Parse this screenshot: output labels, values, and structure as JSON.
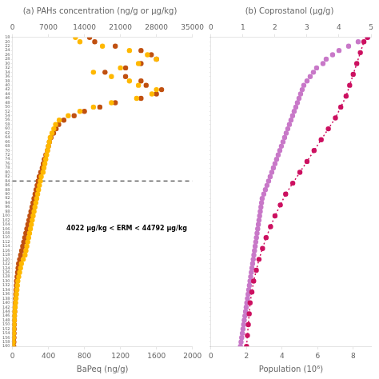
{
  "chart_data": [
    {
      "type": "scatter",
      "title": "(a) PAHs concentration (ng/g or μg/kg)",
      "xlabel": "BaPeq (ng/g)",
      "xlim": [
        0,
        2000
      ],
      "xticks": [
        0,
        400,
        800,
        1200,
        1600,
        2000
      ],
      "x2lim": [
        0,
        35000
      ],
      "x2ticks": [
        0,
        7000,
        14000,
        21000,
        28000,
        35000
      ],
      "ylim": [
        160,
        18
      ],
      "yticks": [
        18,
        20,
        22,
        24,
        26,
        28,
        30,
        32,
        34,
        36,
        38,
        40,
        42,
        44,
        46,
        48,
        50,
        52,
        54,
        56,
        58,
        60,
        62,
        64,
        66,
        68,
        70,
        72,
        74,
        76,
        78,
        80,
        82,
        84,
        86,
        88,
        90,
        92,
        94,
        96,
        98,
        100,
        102,
        104,
        106,
        108,
        110,
        112,
        114,
        116,
        118,
        120,
        122,
        124,
        126,
        128,
        130,
        132,
        134,
        136,
        138,
        140,
        142,
        144,
        146,
        148,
        150,
        152,
        154,
        156,
        158,
        160
      ],
      "grid": false,
      "series": [
        {
          "color": "#c05010",
          "axis": "x2",
          "marker": "circle",
          "x": [
            15000,
            16000,
            20000,
            25000,
            27000,
            28000,
            25000,
            22000,
            18000,
            22000,
            25000,
            26000,
            29000,
            28000,
            25000,
            20000,
            17000,
            14000,
            12000,
            10000,
            9000,
            8500,
            8000,
            7500,
            7200,
            7000,
            6800,
            6500,
            6200,
            6000,
            5800,
            5500,
            5200,
            5000,
            4800,
            4600,
            4400,
            4200,
            4000,
            3800,
            3600,
            3400,
            3200,
            3000,
            2800,
            2600,
            2400,
            2200,
            2000,
            1800,
            1600,
            1400,
            1200,
            1100,
            1000,
            900,
            800,
            750,
            700,
            650,
            600,
            550,
            500,
            450,
            400,
            380,
            360,
            340,
            320,
            300,
            280,
            260
          ],
          "y": [
            18,
            20,
            22,
            24,
            26,
            28,
            30,
            32,
            34,
            36,
            38,
            40,
            42,
            44,
            46,
            48,
            50,
            52,
            54,
            56,
            58,
            60,
            62,
            64,
            66,
            68,
            70,
            72,
            74,
            76,
            78,
            80,
            82,
            84,
            86,
            88,
            90,
            92,
            94,
            96,
            98,
            100,
            102,
            104,
            106,
            108,
            110,
            112,
            114,
            116,
            118,
            120,
            122,
            124,
            126,
            128,
            130,
            132,
            134,
            136,
            138,
            140,
            142,
            144,
            146,
            148,
            150,
            152,
            154,
            156,
            158,
            160
          ]
        },
        {
          "color": "#FFB800",
          "marker": "circle",
          "x": [
            700,
            750,
            1000,
            1300,
            1500,
            1600,
            1400,
            1200,
            900,
            1100,
            1300,
            1400,
            1600,
            1550,
            1380,
            1100,
            900,
            750,
            620,
            520,
            480,
            460,
            440,
            420,
            410,
            400,
            390,
            380,
            370,
            360,
            350,
            340,
            320,
            310,
            300,
            290,
            280,
            270,
            260,
            250,
            240,
            230,
            220,
            210,
            200,
            190,
            180,
            170,
            160,
            150,
            140,
            120,
            100,
            90,
            80,
            70,
            60,
            55,
            50,
            45,
            40,
            35,
            30,
            25,
            22,
            20,
            18,
            15,
            13,
            11,
            9,
            7
          ],
          "y": [
            18,
            20,
            22,
            24,
            26,
            28,
            30,
            32,
            34,
            36,
            38,
            40,
            42,
            44,
            46,
            48,
            50,
            52,
            54,
            56,
            58,
            60,
            62,
            64,
            66,
            68,
            70,
            72,
            74,
            76,
            78,
            80,
            82,
            84,
            86,
            88,
            90,
            92,
            94,
            96,
            98,
            100,
            102,
            104,
            106,
            108,
            110,
            112,
            114,
            116,
            118,
            120,
            122,
            124,
            126,
            128,
            130,
            132,
            134,
            136,
            138,
            140,
            142,
            144,
            146,
            148,
            150,
            152,
            154,
            156,
            158,
            160
          ]
        }
      ],
      "reference_lines": [
        {
          "y": 84,
          "line_style": "dashed",
          "color": "#444444"
        }
      ],
      "annotations": [
        "4022 μg/kg < ERM < 44792 μg/kg"
      ]
    },
    {
      "type": "scatter",
      "title": "(b) Coprostanol (μg/g)",
      "xlabel": "Population (10⁶)",
      "xlim": [
        0,
        9
      ],
      "xticks": [
        0,
        2,
        4,
        6,
        8
      ],
      "x2lim": [
        0,
        5
      ],
      "x2ticks": [
        0,
        1,
        2,
        3,
        4,
        5
      ],
      "ylim": [
        160,
        18
      ],
      "yticks": [
        18,
        20,
        22,
        24,
        26,
        28,
        30,
        32,
        34,
        36,
        38,
        40,
        42,
        44,
        46,
        48,
        50,
        52,
        54,
        56,
        58,
        60,
        62,
        64,
        66,
        68,
        70,
        72,
        74,
        76,
        78,
        80,
        82,
        84,
        86,
        88,
        90,
        92,
        94,
        96,
        98,
        100,
        102,
        104,
        106,
        108,
        110,
        112,
        114,
        116,
        118,
        120,
        122,
        124,
        126,
        128,
        130,
        132,
        134,
        136,
        138,
        140,
        142,
        144,
        146,
        148,
        150,
        152,
        154,
        156,
        158,
        160
      ],
      "tick_labels": "x",
      "grid": false,
      "series": [
        {
          "color": "#c878c8",
          "axis": "x2",
          "marker": "circle",
          "x": [
            4.9,
            4.6,
            4.3,
            4.0,
            3.8,
            3.6,
            3.5,
            3.3,
            3.2,
            3.1,
            3.0,
            2.9,
            2.85,
            2.8,
            2.75,
            2.7,
            2.65,
            2.6,
            2.55,
            2.5,
            2.45,
            2.4,
            2.35,
            2.3,
            2.25,
            2.2,
            2.15,
            2.1,
            2.05,
            2.0,
            1.95,
            1.9,
            1.85,
            1.8,
            1.75,
            1.7,
            1.65,
            1.6,
            1.58,
            1.56,
            1.54,
            1.52,
            1.5,
            1.48,
            1.46,
            1.44,
            1.42,
            1.4,
            1.38,
            1.36,
            1.34,
            1.32,
            1.3,
            1.28,
            1.26,
            1.24,
            1.22,
            1.2,
            1.18,
            1.16,
            1.14,
            1.12,
            1.1,
            1.08,
            1.06,
            1.04,
            1.02,
            1.0,
            0.98,
            0.96,
            0.94,
            0.92
          ],
          "y": [
            18,
            20,
            22,
            24,
            26,
            28,
            30,
            32,
            34,
            36,
            38,
            40,
            42,
            44,
            46,
            48,
            50,
            52,
            54,
            56,
            58,
            60,
            62,
            64,
            66,
            68,
            70,
            72,
            74,
            76,
            78,
            80,
            82,
            84,
            86,
            88,
            90,
            92,
            94,
            96,
            98,
            100,
            102,
            104,
            106,
            108,
            110,
            112,
            114,
            116,
            118,
            120,
            122,
            124,
            126,
            128,
            130,
            132,
            134,
            136,
            138,
            140,
            142,
            144,
            146,
            148,
            150,
            152,
            154,
            156,
            158,
            160
          ]
        },
        {
          "color": "#cc1060",
          "type": "line",
          "line_style": "dotted",
          "marker": "circle",
          "x": [
            2.0,
            2.05,
            2.1,
            2.15,
            2.2,
            2.3,
            2.4,
            2.55,
            2.7,
            2.9,
            3.1,
            3.35,
            3.6,
            3.9,
            4.2,
            4.6,
            5.0,
            5.4,
            5.8,
            6.2,
            6.6,
            7.0,
            7.3,
            7.6,
            7.8,
            8.0,
            8.2,
            8.4,
            8.6,
            8.8
          ],
          "y": [
            160,
            155,
            150,
            145,
            140,
            135,
            130,
            125,
            120,
            115,
            110,
            105,
            100,
            95,
            90,
            85,
            80,
            75,
            70,
            65,
            60,
            55,
            50,
            45,
            40,
            35,
            30,
            25,
            20,
            18
          ]
        }
      ]
    }
  ]
}
